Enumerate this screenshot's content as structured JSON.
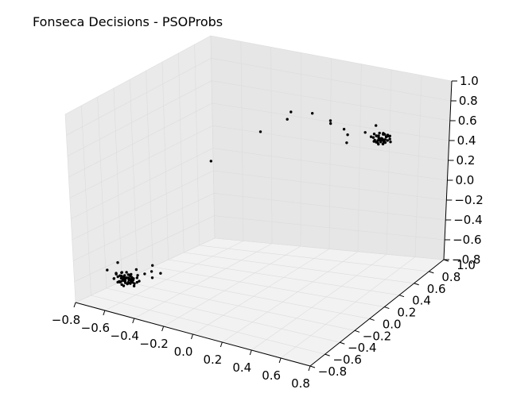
{
  "chart_data": {
    "type": "scatter3d",
    "title": "Fonseca Decisions - PSOProbs",
    "xlabel": "",
    "ylabel": "",
    "zlabel": "",
    "xlim": [
      -0.8,
      0.8
    ],
    "ylim": [
      -0.8,
      1.0
    ],
    "zlim": [
      -0.8,
      1.0
    ],
    "grid": true,
    "marker_color": "#000000",
    "pane_color": "#f2f2f2",
    "x_ticks": [
      "−0.8",
      "−0.6",
      "−0.4",
      "−0.2",
      "0.0",
      "0.2",
      "0.4",
      "0.6",
      "0.8"
    ],
    "y_ticks": [
      "−0.8",
      "−0.6",
      "−0.4",
      "−0.2",
      "0.0",
      "0.2",
      "0.4",
      "0.6",
      "0.8",
      "1.0"
    ],
    "z_ticks": [
      "−0.8",
      "−0.6",
      "−0.4",
      "−0.2",
      "0.0",
      "0.2",
      "0.4",
      "0.6",
      "0.8",
      "1.0"
    ],
    "series": [
      {
        "points": [
          [
            -0.56,
            -0.6,
            -0.58
          ],
          [
            -0.53,
            -0.57,
            -0.55
          ],
          [
            -0.6,
            -0.62,
            -0.6
          ],
          [
            -0.5,
            -0.55,
            -0.53
          ],
          [
            -0.58,
            -0.52,
            -0.56
          ],
          [
            -0.55,
            -0.64,
            -0.61
          ],
          [
            -0.62,
            -0.58,
            -0.57
          ],
          [
            -0.52,
            -0.61,
            -0.59
          ],
          [
            -0.57,
            -0.56,
            -0.52
          ],
          [
            -0.59,
            -0.59,
            -0.63
          ],
          [
            -0.54,
            -0.53,
            -0.58
          ],
          [
            -0.51,
            -0.59,
            -0.56
          ],
          [
            -0.61,
            -0.55,
            -0.54
          ],
          [
            -0.57,
            -0.63,
            -0.55
          ],
          [
            -0.55,
            -0.58,
            -0.6
          ],
          [
            -0.48,
            -0.57,
            -0.57
          ],
          [
            -0.63,
            -0.61,
            -0.58
          ],
          [
            -0.53,
            -0.54,
            -0.62
          ],
          [
            -0.58,
            -0.6,
            -0.51
          ],
          [
            -0.56,
            -0.52,
            -0.6
          ],
          [
            -0.6,
            -0.57,
            -0.56
          ],
          [
            -0.52,
            -0.62,
            -0.54
          ],
          [
            -0.54,
            -0.59,
            -0.57
          ],
          [
            -0.59,
            -0.54,
            -0.59
          ],
          [
            -0.57,
            -0.6,
            -0.55
          ],
          [
            -0.55,
            -0.56,
            -0.58
          ],
          [
            -0.5,
            -0.6,
            -0.61
          ],
          [
            -0.62,
            -0.63,
            -0.57
          ],
          [
            -0.58,
            -0.57,
            -0.6
          ],
          [
            -0.56,
            -0.62,
            -0.56
          ],
          [
            -0.53,
            -0.59,
            -0.52
          ],
          [
            -0.61,
            -0.56,
            -0.62
          ],
          [
            -0.55,
            -0.54,
            -0.54
          ],
          [
            -0.52,
            -0.58,
            -0.59
          ],
          [
            -0.57,
            -0.61,
            -0.57
          ],
          [
            -0.6,
            -0.59,
            -0.55
          ],
          [
            -0.54,
            -0.61,
            -0.6
          ],
          [
            -0.58,
            -0.55,
            -0.58
          ],
          [
            -0.56,
            -0.58,
            -0.56
          ],
          [
            -0.59,
            -0.62,
            -0.59
          ],
          [
            -0.53,
            -0.56,
            -0.57
          ],
          [
            -0.57,
            -0.58,
            -0.61
          ],
          [
            -0.51,
            -0.54,
            -0.56
          ],
          [
            -0.62,
            -0.6,
            -0.53
          ],
          [
            -0.55,
            -0.61,
            -0.55
          ],
          [
            -0.58,
            -0.63,
            -0.59
          ],
          [
            -0.49,
            -0.58,
            -0.58
          ],
          [
            -0.56,
            -0.55,
            -0.62
          ],
          [
            -0.6,
            -0.53,
            -0.57
          ],
          [
            -0.54,
            -0.57,
            -0.54
          ],
          [
            -0.57,
            -0.54,
            -0.58
          ],
          [
            -0.59,
            -0.57,
            -0.6
          ],
          [
            -0.52,
            -0.6,
            -0.57
          ],
          [
            -0.63,
            -0.58,
            -0.55
          ],
          [
            -0.42,
            -0.52,
            -0.48
          ],
          [
            -0.38,
            -0.48,
            -0.5
          ],
          [
            -0.45,
            -0.45,
            -0.46
          ],
          [
            -0.4,
            -0.55,
            -0.52
          ],
          [
            -0.68,
            -0.6,
            -0.52
          ],
          [
            -0.66,
            -0.5,
            -0.48
          ],
          [
            -0.47,
            -0.62,
            -0.44
          ],
          [
            -0.5,
            -0.46,
            -0.55
          ],
          [
            0.54,
            0.6,
            0.52
          ],
          [
            0.56,
            0.58,
            0.55
          ],
          [
            0.52,
            0.62,
            0.53
          ],
          [
            0.58,
            0.56,
            0.51
          ],
          [
            0.55,
            0.64,
            0.56
          ],
          [
            0.5,
            0.59,
            0.54
          ],
          [
            0.57,
            0.61,
            0.5
          ],
          [
            0.53,
            0.57,
            0.57
          ],
          [
            0.59,
            0.63,
            0.53
          ],
          [
            0.55,
            0.55,
            0.52
          ],
          [
            0.51,
            0.61,
            0.55
          ],
          [
            0.56,
            0.6,
            0.58
          ],
          [
            0.6,
            0.58,
            0.54
          ],
          [
            0.54,
            0.63,
            0.51
          ],
          [
            0.57,
            0.56,
            0.56
          ],
          [
            0.52,
            0.59,
            0.5
          ],
          [
            0.58,
            0.62,
            0.57
          ],
          [
            0.53,
            0.61,
            0.53
          ],
          [
            0.55,
            0.57,
            0.55
          ],
          [
            0.61,
            0.6,
            0.52
          ],
          [
            0.56,
            0.64,
            0.54
          ],
          [
            0.5,
            0.56,
            0.56
          ],
          [
            0.57,
            0.59,
            0.59
          ],
          [
            0.54,
            0.58,
            0.49
          ],
          [
            0.59,
            0.57,
            0.55
          ],
          [
            0.52,
            0.63,
            0.57
          ],
          [
            0.55,
            0.61,
            0.53
          ],
          [
            0.58,
            0.6,
            0.56
          ],
          [
            0.53,
            0.55,
            0.54
          ],
          [
            0.56,
            0.62,
            0.52
          ],
          [
            0.6,
            0.61,
            0.57
          ],
          [
            0.54,
            0.57,
            0.53
          ],
          [
            0.51,
            0.58,
            0.58
          ],
          [
            0.57,
            0.63,
            0.55
          ],
          [
            0.55,
            0.59,
            0.51
          ],
          [
            0.59,
            0.55,
            0.54
          ],
          [
            0.53,
            0.6,
            0.56
          ],
          [
            0.56,
            0.57,
            0.53
          ],
          [
            0.58,
            0.64,
            0.55
          ],
          [
            0.52,
            0.56,
            0.52
          ],
          [
            0.55,
            0.62,
            0.58
          ],
          [
            0.57,
            0.58,
            0.5
          ],
          [
            0.4,
            0.45,
            0.6
          ],
          [
            0.35,
            0.5,
            0.62
          ],
          [
            0.45,
            0.58,
            0.58
          ],
          [
            0.3,
            0.42,
            0.72
          ],
          [
            0.2,
            0.38,
            0.78
          ],
          [
            0.1,
            0.3,
            0.8
          ],
          [
            0.05,
            0.35,
            0.7
          ],
          [
            -0.05,
            0.2,
            0.62
          ],
          [
            0.25,
            0.52,
            0.64
          ],
          [
            0.42,
            0.4,
            0.55
          ],
          [
            0.48,
            0.66,
            0.62
          ],
          [
            -0.25,
            -0.05,
            0.4
          ]
        ]
      }
    ]
  }
}
